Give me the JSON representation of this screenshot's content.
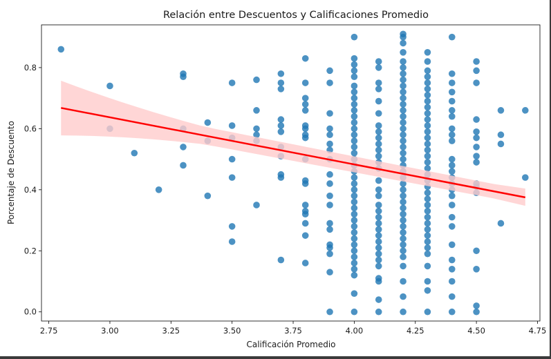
{
  "chart_data": {
    "type": "scatter",
    "title": "Relación entre Descuentos y Calificaciones Promedio",
    "xlabel": "Calificación Promedio",
    "ylabel": "Porcentaje de Descuento",
    "xlim": [
      2.72,
      4.76
    ],
    "ylim": [
      -0.03,
      0.94
    ],
    "xticks": [
      2.75,
      3.0,
      3.25,
      3.5,
      3.75,
      4.0,
      4.25,
      4.5,
      4.75
    ],
    "xtick_labels": [
      "2.75",
      "3.00",
      "3.25",
      "3.50",
      "3.75",
      "4.00",
      "4.25",
      "4.50",
      "4.75"
    ],
    "yticks": [
      0.0,
      0.2,
      0.4,
      0.6,
      0.8
    ],
    "ytick_labels": [
      "0.0",
      "0.2",
      "0.4",
      "0.6",
      "0.8"
    ],
    "grid": false,
    "colors": {
      "points": "#1f77b4",
      "regression_line": "#ff0000",
      "confidence_band": "#ffcccc"
    },
    "regression": {
      "x": [
        2.8,
        4.7
      ],
      "y": [
        0.668,
        0.375
      ],
      "ci_upper": [
        0.745,
        0.42
      ],
      "ci_lower": [
        0.59,
        0.333
      ]
    },
    "points": [
      [
        2.8,
        0.86
      ],
      [
        3.0,
        0.74
      ],
      [
        3.0,
        0.6
      ],
      [
        3.1,
        0.52
      ],
      [
        3.2,
        0.4
      ],
      [
        3.3,
        0.78
      ],
      [
        3.3,
        0.77
      ],
      [
        3.3,
        0.6
      ],
      [
        3.3,
        0.54
      ],
      [
        3.3,
        0.48
      ],
      [
        3.4,
        0.62
      ],
      [
        3.4,
        0.56
      ],
      [
        3.4,
        0.38
      ],
      [
        3.5,
        0.75
      ],
      [
        3.5,
        0.61
      ],
      [
        3.5,
        0.57
      ],
      [
        3.5,
        0.5
      ],
      [
        3.5,
        0.44
      ],
      [
        3.5,
        0.28
      ],
      [
        3.5,
        0.23
      ],
      [
        3.6,
        0.76
      ],
      [
        3.6,
        0.66
      ],
      [
        3.6,
        0.6
      ],
      [
        3.6,
        0.58
      ],
      [
        3.6,
        0.56
      ],
      [
        3.6,
        0.35
      ],
      [
        3.7,
        0.78
      ],
      [
        3.7,
        0.75
      ],
      [
        3.7,
        0.73
      ],
      [
        3.7,
        0.63
      ],
      [
        3.7,
        0.61
      ],
      [
        3.7,
        0.59
      ],
      [
        3.7,
        0.54
      ],
      [
        3.7,
        0.51
      ],
      [
        3.7,
        0.45
      ],
      [
        3.7,
        0.44
      ],
      [
        3.7,
        0.17
      ],
      [
        3.8,
        0.83
      ],
      [
        3.8,
        0.75
      ],
      [
        3.8,
        0.7
      ],
      [
        3.8,
        0.68
      ],
      [
        3.8,
        0.66
      ],
      [
        3.8,
        0.61
      ],
      [
        3.8,
        0.6
      ],
      [
        3.8,
        0.58
      ],
      [
        3.8,
        0.57
      ],
      [
        3.8,
        0.5
      ],
      [
        3.8,
        0.43
      ],
      [
        3.8,
        0.42
      ],
      [
        3.8,
        0.35
      ],
      [
        3.8,
        0.33
      ],
      [
        3.8,
        0.32
      ],
      [
        3.8,
        0.29
      ],
      [
        3.8,
        0.25
      ],
      [
        3.8,
        0.16
      ],
      [
        3.9,
        0.79
      ],
      [
        3.9,
        0.75
      ],
      [
        3.9,
        0.65
      ],
      [
        3.9,
        0.6
      ],
      [
        3.9,
        0.58
      ],
      [
        3.9,
        0.55
      ],
      [
        3.9,
        0.53
      ],
      [
        3.9,
        0.5
      ],
      [
        3.9,
        0.45
      ],
      [
        3.9,
        0.42
      ],
      [
        3.9,
        0.38
      ],
      [
        3.9,
        0.35
      ],
      [
        3.9,
        0.29
      ],
      [
        3.9,
        0.27
      ],
      [
        3.9,
        0.22
      ],
      [
        3.9,
        0.21
      ],
      [
        3.9,
        0.19
      ],
      [
        3.9,
        0.13
      ],
      [
        3.9,
        0.0
      ],
      [
        4.0,
        0.9
      ],
      [
        4.0,
        0.83
      ],
      [
        4.0,
        0.81
      ],
      [
        4.0,
        0.79
      ],
      [
        4.0,
        0.77
      ],
      [
        4.0,
        0.74
      ],
      [
        4.0,
        0.72
      ],
      [
        4.0,
        0.7
      ],
      [
        4.0,
        0.68
      ],
      [
        4.0,
        0.66
      ],
      [
        4.0,
        0.64
      ],
      [
        4.0,
        0.62
      ],
      [
        4.0,
        0.6
      ],
      [
        4.0,
        0.58
      ],
      [
        4.0,
        0.56
      ],
      [
        4.0,
        0.54
      ],
      [
        4.0,
        0.52
      ],
      [
        4.0,
        0.5
      ],
      [
        4.0,
        0.48
      ],
      [
        4.0,
        0.46
      ],
      [
        4.0,
        0.44
      ],
      [
        4.0,
        0.42
      ],
      [
        4.0,
        0.4
      ],
      [
        4.0,
        0.38
      ],
      [
        4.0,
        0.36
      ],
      [
        4.0,
        0.34
      ],
      [
        4.0,
        0.32
      ],
      [
        4.0,
        0.3
      ],
      [
        4.0,
        0.28
      ],
      [
        4.0,
        0.26
      ],
      [
        4.0,
        0.24
      ],
      [
        4.0,
        0.22
      ],
      [
        4.0,
        0.2
      ],
      [
        4.0,
        0.18
      ],
      [
        4.0,
        0.16
      ],
      [
        4.0,
        0.14
      ],
      [
        4.0,
        0.12
      ],
      [
        4.0,
        0.06
      ],
      [
        4.0,
        0.0
      ],
      [
        4.1,
        0.82
      ],
      [
        4.1,
        0.8
      ],
      [
        4.1,
        0.75
      ],
      [
        4.1,
        0.73
      ],
      [
        4.1,
        0.69
      ],
      [
        4.1,
        0.65
      ],
      [
        4.1,
        0.61
      ],
      [
        4.1,
        0.59
      ],
      [
        4.1,
        0.57
      ],
      [
        4.1,
        0.55
      ],
      [
        4.1,
        0.53
      ],
      [
        4.1,
        0.51
      ],
      [
        4.1,
        0.49
      ],
      [
        4.1,
        0.47
      ],
      [
        4.1,
        0.43
      ],
      [
        4.1,
        0.4
      ],
      [
        4.1,
        0.38
      ],
      [
        4.1,
        0.35
      ],
      [
        4.1,
        0.33
      ],
      [
        4.1,
        0.31
      ],
      [
        4.1,
        0.29
      ],
      [
        4.1,
        0.27
      ],
      [
        4.1,
        0.25
      ],
      [
        4.1,
        0.23
      ],
      [
        4.1,
        0.21
      ],
      [
        4.1,
        0.19
      ],
      [
        4.1,
        0.17
      ],
      [
        4.1,
        0.15
      ],
      [
        4.1,
        0.11
      ],
      [
        4.1,
        0.1
      ],
      [
        4.1,
        0.04
      ],
      [
        4.1,
        0.0
      ],
      [
        4.2,
        0.91
      ],
      [
        4.2,
        0.9
      ],
      [
        4.2,
        0.88
      ],
      [
        4.2,
        0.85
      ],
      [
        4.2,
        0.82
      ],
      [
        4.2,
        0.8
      ],
      [
        4.2,
        0.78
      ],
      [
        4.2,
        0.76
      ],
      [
        4.2,
        0.74
      ],
      [
        4.2,
        0.72
      ],
      [
        4.2,
        0.7
      ],
      [
        4.2,
        0.68
      ],
      [
        4.2,
        0.66
      ],
      [
        4.2,
        0.64
      ],
      [
        4.2,
        0.62
      ],
      [
        4.2,
        0.6
      ],
      [
        4.2,
        0.58
      ],
      [
        4.2,
        0.56
      ],
      [
        4.2,
        0.54
      ],
      [
        4.2,
        0.52
      ],
      [
        4.2,
        0.5
      ],
      [
        4.2,
        0.48
      ],
      [
        4.2,
        0.46
      ],
      [
        4.2,
        0.44
      ],
      [
        4.2,
        0.42
      ],
      [
        4.2,
        0.4
      ],
      [
        4.2,
        0.38
      ],
      [
        4.2,
        0.36
      ],
      [
        4.2,
        0.34
      ],
      [
        4.2,
        0.32
      ],
      [
        4.2,
        0.3
      ],
      [
        4.2,
        0.28
      ],
      [
        4.2,
        0.26
      ],
      [
        4.2,
        0.24
      ],
      [
        4.2,
        0.22
      ],
      [
        4.2,
        0.2
      ],
      [
        4.2,
        0.18
      ],
      [
        4.2,
        0.15
      ],
      [
        4.2,
        0.1
      ],
      [
        4.2,
        0.05
      ],
      [
        4.2,
        0.0
      ],
      [
        4.3,
        0.85
      ],
      [
        4.3,
        0.82
      ],
      [
        4.3,
        0.79
      ],
      [
        4.3,
        0.77
      ],
      [
        4.3,
        0.75
      ],
      [
        4.3,
        0.73
      ],
      [
        4.3,
        0.71
      ],
      [
        4.3,
        0.69
      ],
      [
        4.3,
        0.67
      ],
      [
        4.3,
        0.65
      ],
      [
        4.3,
        0.63
      ],
      [
        4.3,
        0.61
      ],
      [
        4.3,
        0.59
      ],
      [
        4.3,
        0.57
      ],
      [
        4.3,
        0.55
      ],
      [
        4.3,
        0.53
      ],
      [
        4.3,
        0.51
      ],
      [
        4.3,
        0.49
      ],
      [
        4.3,
        0.47
      ],
      [
        4.3,
        0.45
      ],
      [
        4.3,
        0.43
      ],
      [
        4.3,
        0.41
      ],
      [
        4.3,
        0.39
      ],
      [
        4.3,
        0.37
      ],
      [
        4.3,
        0.35
      ],
      [
        4.3,
        0.33
      ],
      [
        4.3,
        0.31
      ],
      [
        4.3,
        0.29
      ],
      [
        4.3,
        0.27
      ],
      [
        4.3,
        0.25
      ],
      [
        4.3,
        0.23
      ],
      [
        4.3,
        0.21
      ],
      [
        4.3,
        0.19
      ],
      [
        4.3,
        0.15
      ],
      [
        4.3,
        0.1
      ],
      [
        4.3,
        0.07
      ],
      [
        4.3,
        0.0
      ],
      [
        4.4,
        0.9
      ],
      [
        4.4,
        0.78
      ],
      [
        4.4,
        0.75
      ],
      [
        4.4,
        0.72
      ],
      [
        4.4,
        0.69
      ],
      [
        4.4,
        0.66
      ],
      [
        4.4,
        0.64
      ],
      [
        4.4,
        0.6
      ],
      [
        4.4,
        0.58
      ],
      [
        4.4,
        0.56
      ],
      [
        4.4,
        0.5
      ],
      [
        4.4,
        0.48
      ],
      [
        4.4,
        0.46
      ],
      [
        4.4,
        0.44
      ],
      [
        4.4,
        0.42
      ],
      [
        4.4,
        0.4
      ],
      [
        4.4,
        0.38
      ],
      [
        4.4,
        0.35
      ],
      [
        4.4,
        0.31
      ],
      [
        4.4,
        0.28
      ],
      [
        4.4,
        0.22
      ],
      [
        4.4,
        0.17
      ],
      [
        4.4,
        0.14
      ],
      [
        4.4,
        0.1
      ],
      [
        4.4,
        0.05
      ],
      [
        4.4,
        0.0
      ],
      [
        4.5,
        0.82
      ],
      [
        4.5,
        0.79
      ],
      [
        4.5,
        0.75
      ],
      [
        4.5,
        0.63
      ],
      [
        4.5,
        0.59
      ],
      [
        4.5,
        0.57
      ],
      [
        4.5,
        0.54
      ],
      [
        4.5,
        0.51
      ],
      [
        4.5,
        0.49
      ],
      [
        4.5,
        0.42
      ],
      [
        4.5,
        0.41
      ],
      [
        4.5,
        0.39
      ],
      [
        4.5,
        0.2
      ],
      [
        4.5,
        0.14
      ],
      [
        4.5,
        0.02
      ],
      [
        4.5,
        0.0
      ],
      [
        4.6,
        0.66
      ],
      [
        4.6,
        0.58
      ],
      [
        4.6,
        0.55
      ],
      [
        4.6,
        0.29
      ],
      [
        4.7,
        0.66
      ],
      [
        4.7,
        0.44
      ]
    ]
  }
}
